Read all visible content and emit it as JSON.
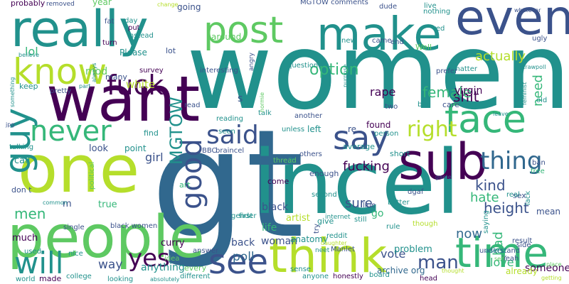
{
  "palette": {
    "dark_purple": "#440154",
    "indigo": "#3b528b",
    "blue_slate": "#31688e",
    "teal": "#21918c",
    "sea_green": "#35b779",
    "green": "#5ec962",
    "light_green": "#90d743",
    "yellow_green": "#b5de2b",
    "yellow": "#fde725"
  },
  "words": [
    {
      "text": "women",
      "color": "teal"
    },
    {
      "text": "gt",
      "color": "blue_slate"
    },
    {
      "text": "incel",
      "color": "teal"
    },
    {
      "text": "one",
      "color": "yellow_green"
    },
    {
      "text": "people",
      "color": "green"
    },
    {
      "text": "really",
      "color": "teal"
    },
    {
      "text": "want",
      "color": "dark_purple"
    },
    {
      "text": "post",
      "color": "green"
    },
    {
      "text": "make",
      "color": "teal"
    },
    {
      "text": "even",
      "color": "indigo"
    },
    {
      "text": "sub",
      "color": "dark_purple"
    },
    {
      "text": "think",
      "color": "yellow_green"
    },
    {
      "text": "time",
      "color": "sea_green"
    },
    {
      "text": "face",
      "color": "sea_green"
    },
    {
      "text": "know",
      "color": "yellow_green"
    },
    {
      "text": "see",
      "color": "indigo"
    },
    {
      "text": "guy",
      "color": "teal"
    },
    {
      "text": "say",
      "color": "indigo"
    },
    {
      "text": "said",
      "color": "indigo"
    },
    {
      "text": "fuck",
      "color": "dark_purple"
    },
    {
      "text": "good",
      "color": "indigo"
    },
    {
      "text": "never",
      "color": "sea_green"
    },
    {
      "text": "will",
      "color": "teal"
    },
    {
      "text": "yes",
      "color": "dark_purple"
    },
    {
      "text": "thing",
      "color": "blue_slate"
    },
    {
      "text": "right",
      "color": "yellow_green"
    },
    {
      "text": "MGTOW",
      "color": "teal"
    },
    {
      "text": "shit",
      "color": "dark_purple"
    },
    {
      "text": "fucking",
      "color": "dark_purple"
    },
    {
      "text": "man",
      "color": "indigo"
    },
    {
      "text": "option",
      "color": "sea_green"
    },
    {
      "text": "actually",
      "color": "yellow_green"
    },
    {
      "text": "female",
      "color": "sea_green"
    },
    {
      "text": "kind",
      "color": "indigo"
    },
    {
      "text": "men",
      "color": "sea_green"
    },
    {
      "text": "lol",
      "color": "sea_green"
    },
    {
      "text": "mod",
      "color": "green"
    },
    {
      "text": "white",
      "color": "yellow_green"
    },
    {
      "text": "rape",
      "color": "dark_purple"
    },
    {
      "text": "girl",
      "color": "indigo"
    },
    {
      "text": "height",
      "color": "indigo"
    },
    {
      "text": "hate",
      "color": "sea_green"
    },
    {
      "text": "sure",
      "color": "indigo"
    },
    {
      "text": "black",
      "color": "indigo"
    },
    {
      "text": "life",
      "color": "sea_green"
    },
    {
      "text": "woman",
      "color": "indigo"
    },
    {
      "text": "bad",
      "color": "sea_green"
    },
    {
      "text": "need",
      "color": "sea_green"
    },
    {
      "text": "now",
      "color": "blue_slate"
    },
    {
      "text": "much",
      "color": "dark_purple"
    },
    {
      "text": "way",
      "color": "indigo"
    },
    {
      "text": "poll",
      "color": "blue_slate"
    },
    {
      "text": "anything",
      "color": "teal"
    },
    {
      "text": "vote",
      "color": "indigo"
    },
    {
      "text": "love",
      "color": "sea_green"
    },
    {
      "text": "someone",
      "color": "dark_purple"
    },
    {
      "text": "problem",
      "color": "teal"
    },
    {
      "text": "curry",
      "color": "dark_purple"
    },
    {
      "text": "back",
      "color": "indigo"
    },
    {
      "text": "look",
      "color": "indigo"
    },
    {
      "text": "point",
      "color": "teal"
    },
    {
      "text": "call",
      "color": "teal"
    },
    {
      "text": "true",
      "color": "sea_green"
    },
    {
      "text": "probably",
      "color": "dark_purple"
    },
    {
      "text": "year",
      "color": "green"
    },
    {
      "text": "going",
      "color": "indigo"
    },
    {
      "text": "around",
      "color": "green"
    },
    {
      "text": "Please",
      "color": "teal"
    },
    {
      "text": "found",
      "color": "dark_purple"
    },
    {
      "text": "left",
      "color": "teal"
    },
    {
      "text": "re",
      "color": "indigo"
    },
    {
      "text": "find",
      "color": "teal"
    },
    {
      "text": "art",
      "color": "sea_green"
    },
    {
      "text": "come",
      "color": "dark_purple"
    },
    {
      "text": "enough",
      "color": "indigo"
    },
    {
      "text": "average",
      "color": "teal"
    },
    {
      "text": "short",
      "color": "teal"
    },
    {
      "text": "give",
      "color": "teal"
    },
    {
      "text": "go",
      "color": "sea_green"
    },
    {
      "text": "Well",
      "color": "green"
    },
    {
      "text": "keep",
      "color": "teal"
    },
    {
      "text": "talking",
      "color": "teal"
    },
    {
      "text": "don t",
      "color": "indigo"
    },
    {
      "text": "m",
      "color": "indigo"
    },
    {
      "text": "s",
      "color": "indigo"
    },
    {
      "text": "already",
      "color": "yellow_green"
    },
    {
      "text": "artist",
      "color": "yellow_green"
    },
    {
      "text": "MGTOW comments",
      "color": "indigo"
    },
    {
      "text": "live",
      "color": "teal"
    },
    {
      "text": "nothing",
      "color": "teal"
    },
    {
      "text": "dude",
      "color": "indigo"
    },
    {
      "text": "red",
      "color": "teal"
    },
    {
      "text": "mean",
      "color": "indigo"
    },
    {
      "text": "lack",
      "color": "teal"
    },
    {
      "text": "lot",
      "color": "indigo"
    },
    {
      "text": "survey",
      "color": "dark_purple"
    },
    {
      "text": "many",
      "color": "indigo"
    },
    {
      "text": "removed",
      "color": "indigo"
    },
    {
      "text": "BBC",
      "color": "indigo"
    },
    {
      "text": "braincel",
      "color": "indigo"
    },
    {
      "text": "first",
      "color": "teal"
    },
    {
      "text": "second",
      "color": "teal"
    },
    {
      "text": "still",
      "color": "teal"
    },
    {
      "text": "rule",
      "color": "teal"
    },
    {
      "text": "better",
      "color": "teal"
    },
    {
      "text": "reddit",
      "color": "teal"
    },
    {
      "text": "made",
      "color": "dark_purple"
    },
    {
      "text": "every",
      "color": "green"
    },
    {
      "text": "idea",
      "color": "green"
    },
    {
      "text": "answer",
      "color": "indigo"
    },
    {
      "text": "result",
      "color": "indigo"
    },
    {
      "text": "Yeah",
      "color": "indigo"
    },
    {
      "text": "anatomy",
      "color": "teal"
    },
    {
      "text": "archive org",
      "color": "blue_slate"
    },
    {
      "text": "prefer",
      "color": "indigo"
    },
    {
      "text": "virgin",
      "color": "dark_purple"
    },
    {
      "text": "matter",
      "color": "teal"
    },
    {
      "text": "question",
      "color": "teal"
    },
    {
      "text": "person",
      "color": "teal"
    },
    {
      "text": "another",
      "color": "indigo"
    },
    {
      "text": "others",
      "color": "indigo"
    },
    {
      "text": "fat",
      "color": "indigo"
    },
    {
      "text": "put",
      "color": "dark_purple"
    },
    {
      "text": "instead",
      "color": "teal"
    },
    {
      "text": "turn",
      "color": "dark_purple"
    },
    {
      "text": "new",
      "color": "teal"
    },
    {
      "text": "came",
      "color": "indigo"
    },
    {
      "text": "end",
      "color": "indigo"
    },
    {
      "text": "angry",
      "color": "indigo"
    },
    {
      "text": "interesting",
      "color": "indigo"
    },
    {
      "text": "read",
      "color": "indigo"
    },
    {
      "text": "reading",
      "color": "teal"
    },
    {
      "text": "talk",
      "color": "teal"
    },
    {
      "text": "seen",
      "color": "teal"
    },
    {
      "text": "unless",
      "color": "teal"
    },
    {
      "text": "two",
      "color": "indigo"
    },
    {
      "text": "big",
      "color": "teal"
    },
    {
      "text": "care",
      "color": "indigo"
    },
    {
      "text": "old",
      "color": "teal"
    },
    {
      "text": "ban",
      "color": "indigo"
    },
    {
      "text": "free",
      "color": "sea_green"
    },
    {
      "text": "sex",
      "color": "indigo"
    },
    {
      "text": "real",
      "color": "teal"
    },
    {
      "text": "though",
      "color": "yellow_green"
    },
    {
      "text": "understand",
      "color": "indigo"
    },
    {
      "text": "saying",
      "color": "teal"
    },
    {
      "text": "asked",
      "color": "teal"
    },
    {
      "text": "side",
      "color": "indigo"
    },
    {
      "text": "head",
      "color": "dark_purple"
    },
    {
      "text": "board",
      "color": "teal"
    },
    {
      "text": "honestly",
      "color": "dark_purple"
    },
    {
      "text": "anyone",
      "color": "teal"
    },
    {
      "text": "sense",
      "color": "teal"
    },
    {
      "text": "different",
      "color": "teal"
    },
    {
      "text": "absolutely",
      "color": "teal"
    },
    {
      "text": "college",
      "color": "teal"
    },
    {
      "text": "looking",
      "color": "teal"
    },
    {
      "text": "world",
      "color": "teal"
    },
    {
      "text": "used",
      "color": "teal"
    },
    {
      "text": "nice",
      "color": "teal"
    },
    {
      "text": "black women",
      "color": "indigo"
    },
    {
      "text": "single",
      "color": "indigo"
    },
    {
      "text": "common",
      "color": "teal"
    },
    {
      "text": "political",
      "color": "green"
    },
    {
      "text": "gender",
      "color": "teal"
    },
    {
      "text": "internet",
      "color": "teal"
    },
    {
      "text": "daughter",
      "color": "yellow_green"
    },
    {
      "text": "identity",
      "color": "teal"
    },
    {
      "text": "thread",
      "color": "green"
    },
    {
      "text": "line",
      "color": "indigo"
    },
    {
      "text": "neet",
      "color": "teal"
    },
    {
      "text": "try",
      "color": "indigo"
    },
    {
      "text": "Manlet",
      "color": "indigo"
    },
    {
      "text": "dgaf",
      "color": "indigo"
    },
    {
      "text": "normie",
      "color": "green"
    },
    {
      "text": "strawpoll",
      "color": "teal"
    },
    {
      "text": "ugly",
      "color": "indigo"
    },
    {
      "text": "whatever",
      "color": "indigo"
    },
    {
      "text": "feminist",
      "color": "teal"
    },
    {
      "text": "purpose",
      "color": "teal"
    },
    {
      "text": "change",
      "color": "yellow_green"
    },
    {
      "text": "day",
      "color": "teal"
    },
    {
      "text": "always",
      "color": "teal"
    },
    {
      "text": "believe",
      "color": "teal"
    },
    {
      "text": "something",
      "color": "teal"
    },
    {
      "text": "part",
      "color": "teal"
    },
    {
      "text": "pretty",
      "color": "indigo"
    },
    {
      "text": "jpg",
      "color": "indigo"
    },
    {
      "text": "leave",
      "color": "teal"
    },
    {
      "text": "game",
      "color": "indigo"
    },
    {
      "text": "self",
      "color": "green"
    },
    {
      "text": "thought",
      "color": "yellow_green"
    },
    {
      "text": "place",
      "color": "green"
    },
    {
      "text": "getting",
      "color": "yellow_green"
    }
  ]
}
